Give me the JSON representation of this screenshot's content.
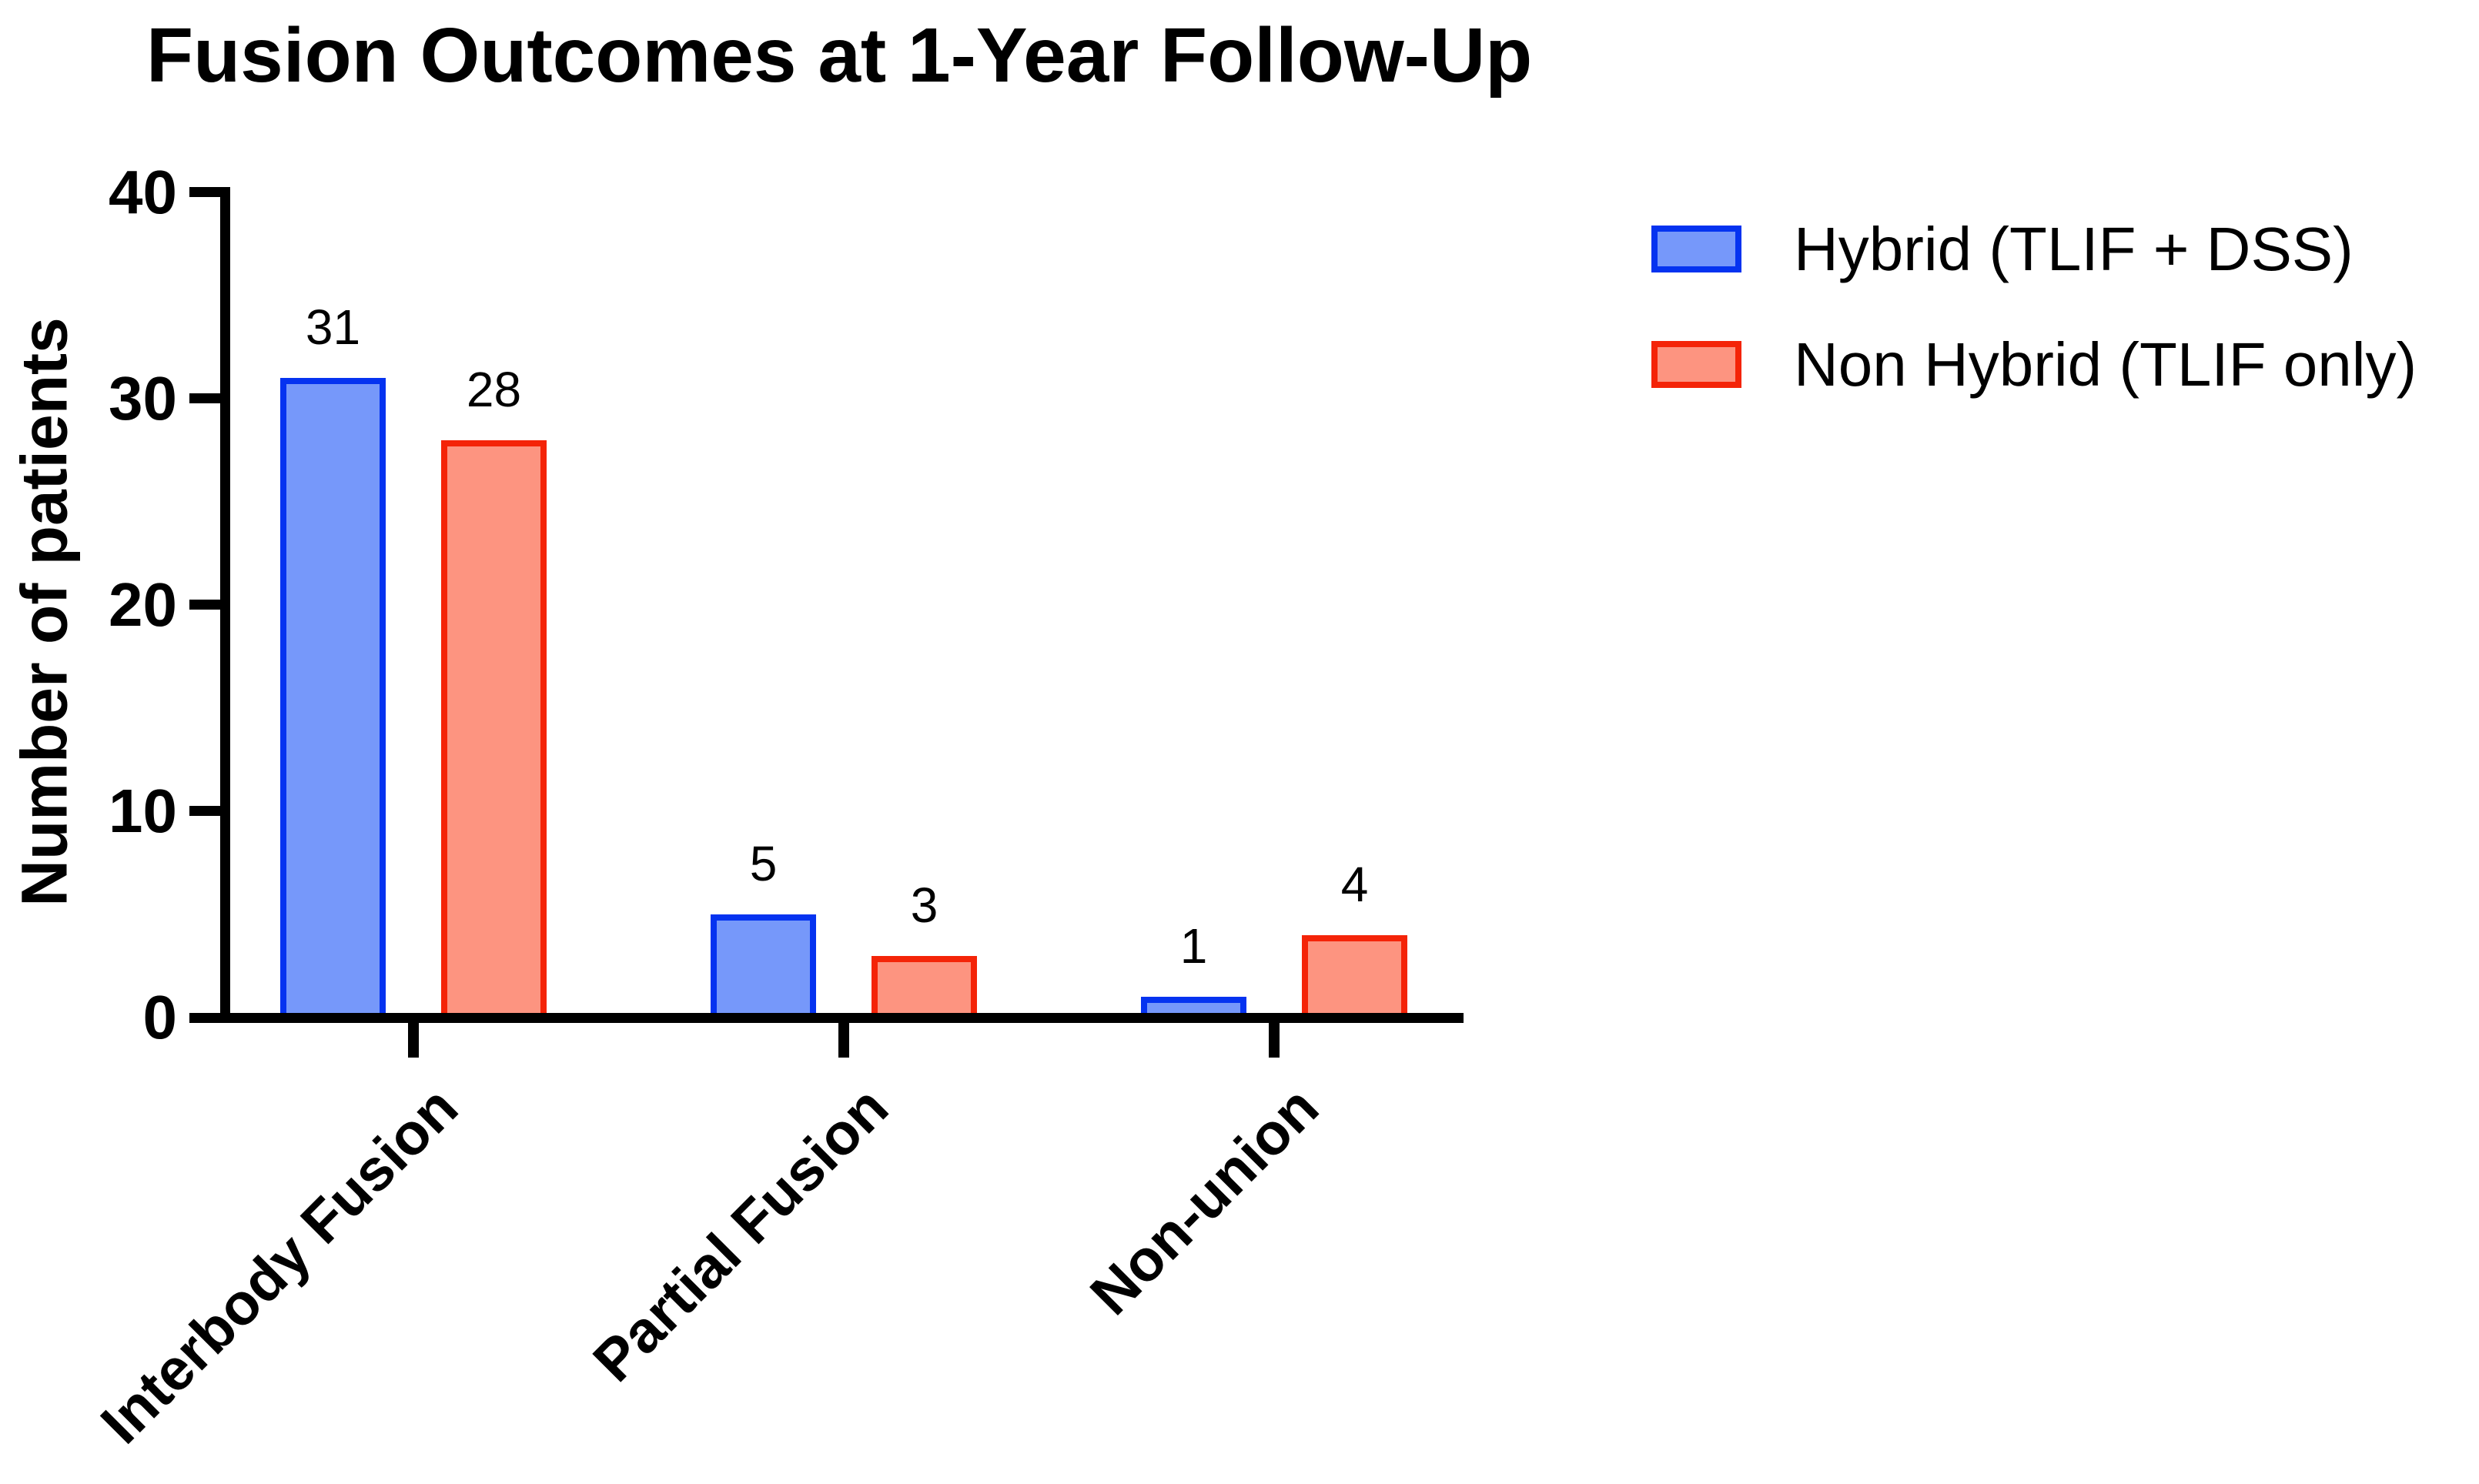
{
  "figure": {
    "title": "Fusion Outcomes at 1-Year Follow-Up"
  },
  "chart_data": {
    "type": "bar",
    "title": "Fusion Outcomes at 1-Year Follow-Up",
    "categories": [
      "Interbody Fusion",
      "Partial Fusion",
      "Non-union"
    ],
    "series": [
      {
        "name": "Hybrid (TLIF + DSS)",
        "values": [
          31,
          5,
          1
        ],
        "fill": "#7698FA",
        "border": "#0533F0"
      },
      {
        "name": "Non Hybrid (TLIF only)",
        "values": [
          28,
          3,
          4
        ],
        "fill": "#FD9480",
        "border": "#F42408"
      }
    ],
    "bar_value_labels": [
      [
        31,
        5,
        1
      ],
      [
        28,
        3,
        4
      ]
    ],
    "xlabel": "",
    "ylabel": "Number of patients",
    "ylim": [
      0,
      40
    ],
    "yticks": [
      0,
      10,
      20,
      30,
      40
    ],
    "grid": false,
    "legend_position": "right",
    "colors": {
      "axis": "#000000",
      "text": "#000000",
      "hybrid_fill": "#7698FA",
      "hybrid_border": "#0533F0",
      "nonhybrid_fill": "#FD9480",
      "nonhybrid_border": "#F42408"
    }
  }
}
